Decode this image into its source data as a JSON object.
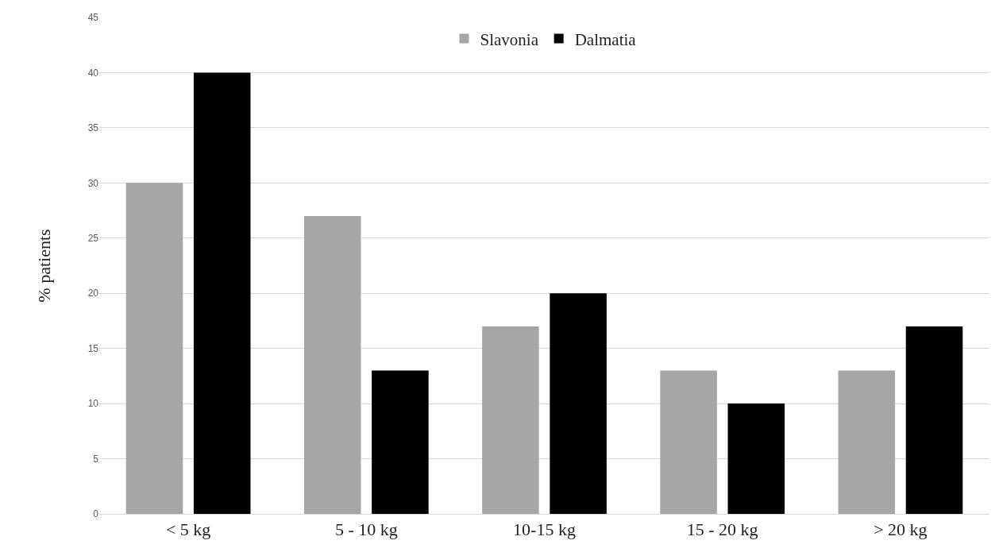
{
  "chart_data": {
    "type": "bar",
    "ylabel": "% patients",
    "categories": [
      "< 5 kg",
      "5 - 10 kg",
      "10-15 kg",
      "15 - 20 kg",
      "> 20 kg"
    ],
    "series": [
      {
        "name": "Slavonia",
        "color": "#a6a6a6",
        "values": [
          30,
          27,
          17,
          13,
          13
        ]
      },
      {
        "name": "Dalmatia",
        "color": "#000000",
        "values": [
          40,
          13,
          20,
          10,
          17
        ]
      }
    ],
    "ylim": [
      0,
      45
    ],
    "yticks": [
      0,
      5,
      10,
      15,
      20,
      25,
      30,
      35,
      40,
      45
    ],
    "grid": "y",
    "legend": "top"
  }
}
